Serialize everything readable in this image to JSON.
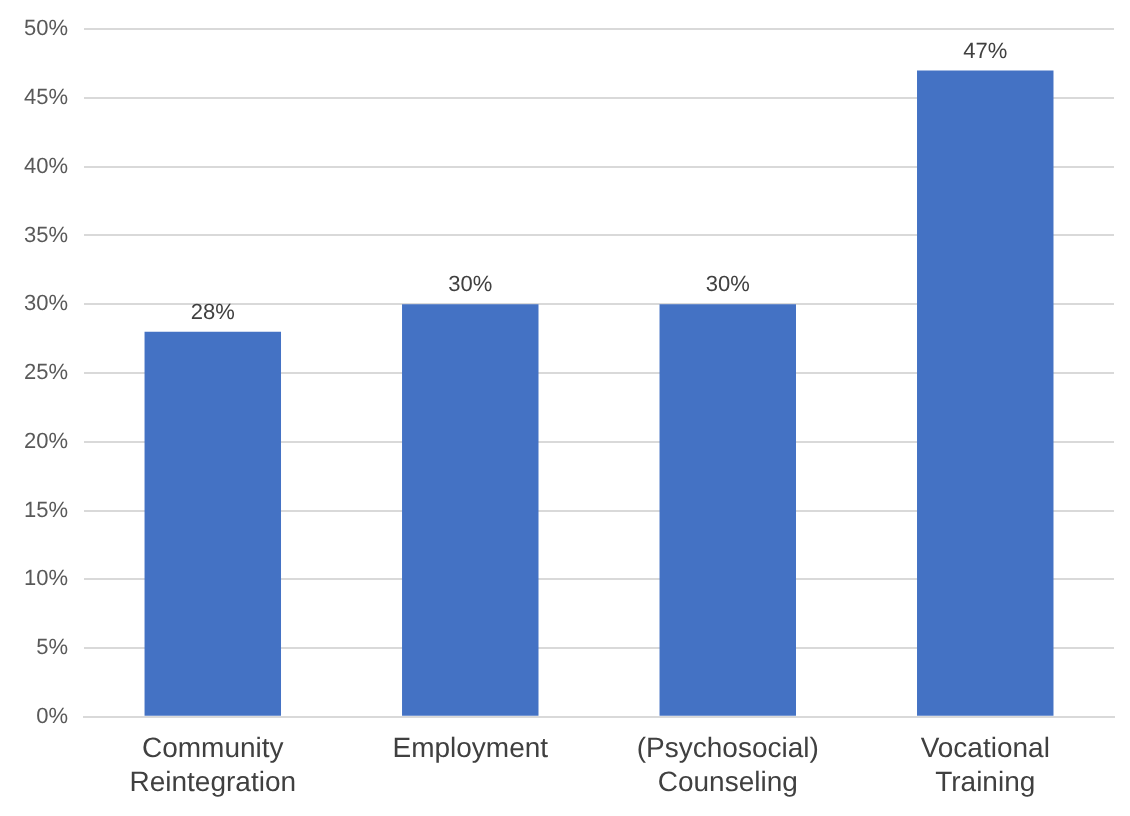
{
  "chart_data": {
    "type": "bar",
    "categories": [
      "Community Reintegration",
      "Employment",
      "(Psychosocial) Counseling",
      "Vocational Training"
    ],
    "values": [
      28,
      30,
      30,
      47
    ],
    "color": "#4472c4",
    "ylim": [
      0,
      50
    ],
    "yticks": [
      {
        "value": 0,
        "label": "0%"
      },
      {
        "value": 5,
        "label": "5%"
      },
      {
        "value": 10,
        "label": "10%"
      },
      {
        "value": 15,
        "label": "15%"
      },
      {
        "value": 20,
        "label": "20%"
      },
      {
        "value": 25,
        "label": "25%"
      },
      {
        "value": 30,
        "label": "30%"
      },
      {
        "value": 35,
        "label": "35%"
      },
      {
        "value": 40,
        "label": "40%"
      },
      {
        "value": 45,
        "label": "45%"
      },
      {
        "value": 50,
        "label": "50%"
      }
    ],
    "value_labels": [
      "28%",
      "30%",
      "30%",
      "47%"
    ],
    "grid": "y",
    "legend": false
  }
}
